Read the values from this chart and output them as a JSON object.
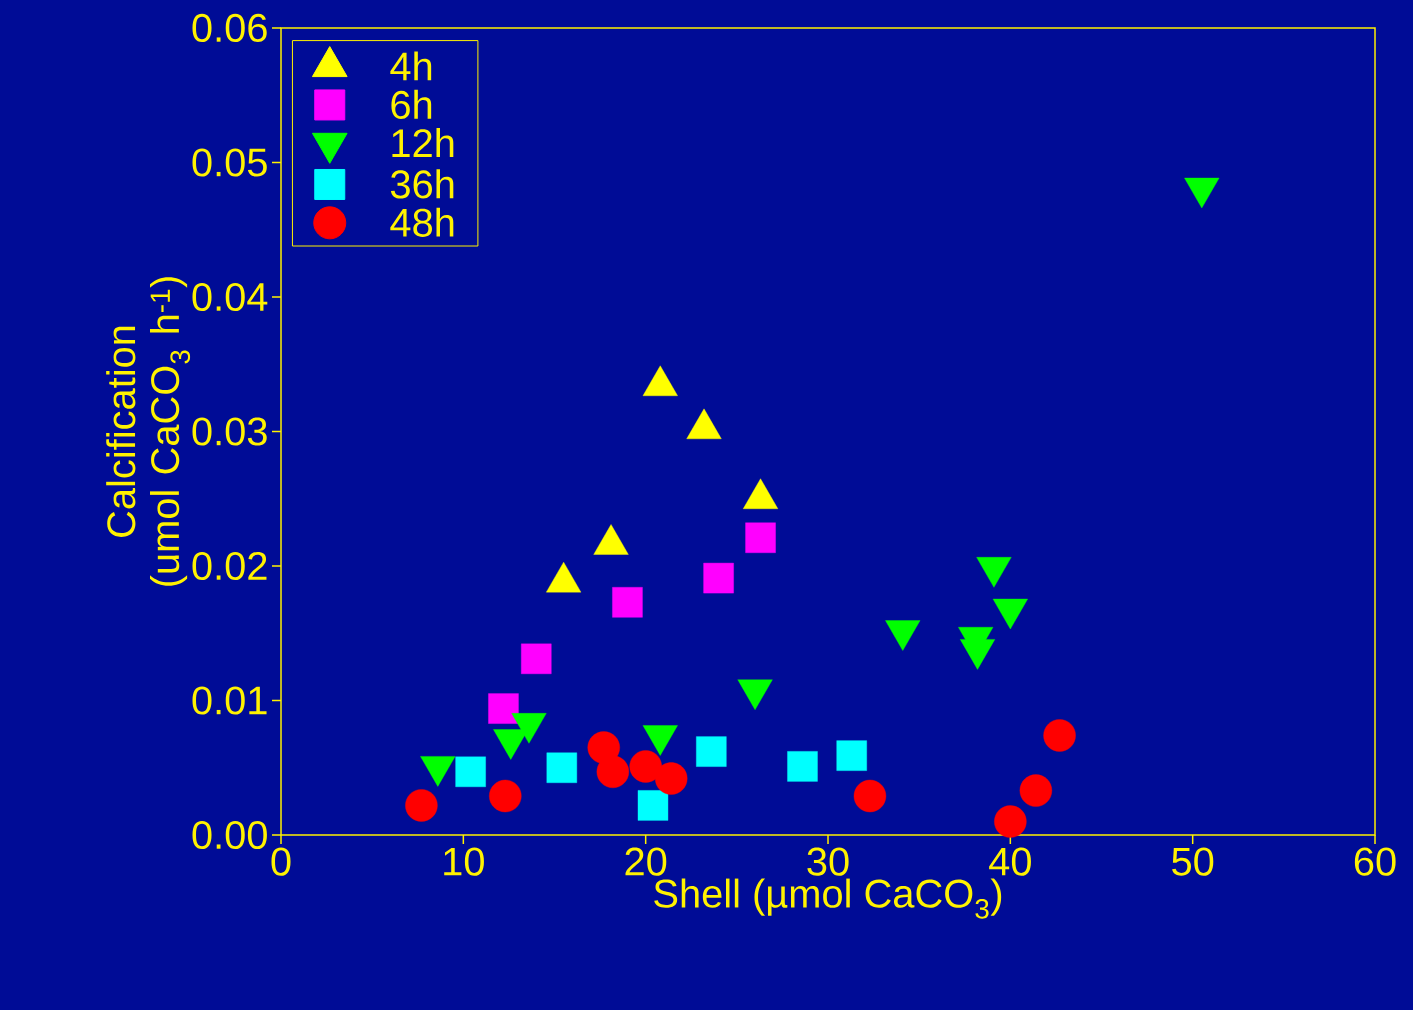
{
  "chart_data": {
    "type": "scatter",
    "xlabel": "Shell (µmol CaCO$_{3}$)",
    "ylabel": "Calcification (umol CaCO$_{3}$ h$^{-1}$)",
    "xlim": [
      0,
      60
    ],
    "ylim": [
      0,
      0.06
    ],
    "xticks": [
      0,
      10,
      20,
      30,
      40,
      50,
      60
    ],
    "yticks": [
      {
        "value": 0,
        "label": "0.00"
      },
      {
        "value": 0.01,
        "label": "0.01"
      },
      {
        "value": 0.02,
        "label": "0.02"
      },
      {
        "value": 0.03,
        "label": "0.03"
      },
      {
        "value": 0.04,
        "label": "0.04"
      },
      {
        "value": 0.05,
        "label": "0.05"
      },
      {
        "value": 0.06,
        "label": "0.06"
      }
    ],
    "legend": "top left",
    "series": [
      {
        "name": "4h",
        "color": "#ffff00",
        "marker": "triangle",
        "x": [
          15.5,
          18.1,
          20.8,
          23.2,
          26.3
        ],
        "values": [
          0.0188,
          0.0216,
          0.0334,
          0.0302,
          0.025
        ]
      },
      {
        "name": "6h",
        "color": "#ff00ff",
        "marker": "square",
        "x": [
          12.2,
          14.0,
          19.0,
          24.0,
          26.3
        ],
        "values": [
          0.0094,
          0.0131,
          0.0173,
          0.0191,
          0.0221
        ]
      },
      {
        "name": "12h",
        "color": "#00ff00",
        "marker": "triangle-down",
        "x": [
          8.6,
          12.6,
          13.6,
          20.8,
          26.0,
          34.1,
          38.1,
          38.2,
          39.1,
          40.0,
          50.5
        ],
        "values": [
          0.0051,
          0.0071,
          0.0083,
          0.0074,
          0.0108,
          0.0152,
          0.0147,
          0.0138,
          0.0199,
          0.0168,
          0.0481
        ]
      },
      {
        "name": "36h",
        "color": "#00ffff",
        "marker": "square",
        "x": [
          10.4,
          15.4,
          20.4,
          23.6,
          28.6,
          31.3
        ],
        "values": [
          0.0047,
          0.005,
          0.0022,
          0.0062,
          0.0051,
          0.0059
        ]
      },
      {
        "name": "48h",
        "color": "#ff0000",
        "marker": "circle",
        "x": [
          7.7,
          12.3,
          17.7,
          18.2,
          20.0,
          21.4,
          32.3,
          40.0,
          41.4,
          42.7
        ],
        "values": [
          0.0022,
          0.0029,
          0.0065,
          0.0047,
          0.0051,
          0.0042,
          0.0029,
          0.001,
          0.0033,
          0.0074
        ]
      }
    ]
  }
}
